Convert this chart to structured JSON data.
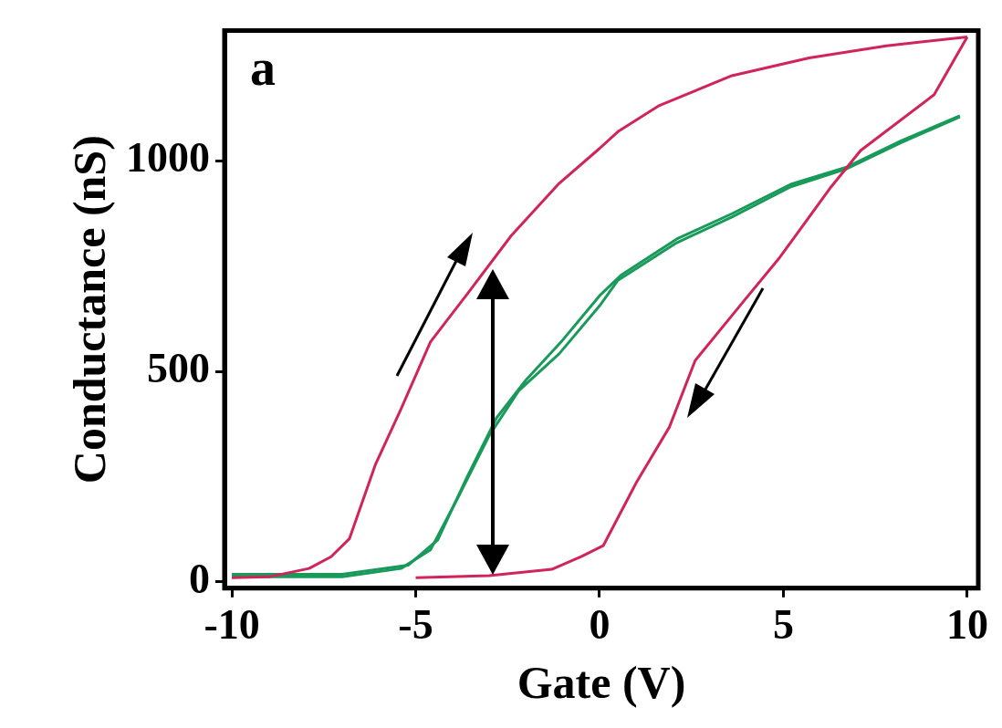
{
  "chart_data": {
    "type": "line",
    "xlabel": "Gate (V)",
    "ylabel": "Conductance (nS)",
    "xlim": [
      -10.2,
      10.3
    ],
    "ylim": [
      -15,
      1310
    ],
    "xticks": [
      -10,
      -5,
      0,
      5,
      10
    ],
    "yticks": [
      0,
      500,
      1000
    ],
    "marker": "none",
    "line_style": "solid",
    "annotations": [
      "a"
    ],
    "series": [
      {
        "color": "#d0245a",
        "x": [
          -10,
          -9,
          -7.9,
          -7.3,
          -6.8,
          -6.1,
          -5.4,
          -4.6,
          -3.6,
          -2.4,
          -1.1,
          0,
          0.5,
          1.6,
          3.6,
          5.7,
          7.8,
          10
        ],
        "values": [
          10,
          12,
          32,
          60,
          103,
          278,
          411,
          570,
          684,
          823,
          947,
          1030,
          1070,
          1131,
          1203,
          1245,
          1274,
          1295
        ]
      },
      {
        "color": "#d0245a",
        "x": [
          -5,
          -3,
          -1.3,
          -0.5,
          0.1,
          1,
          1.9,
          2.6,
          3.9,
          4.9,
          6.3,
          7.1,
          9.1,
          10
        ],
        "values": [
          10,
          15,
          30,
          60,
          86,
          236,
          368,
          526,
          665,
          771,
          939,
          1025,
          1158,
          1295
        ]
      },
      {
        "color": "#1a9a5a",
        "x": [
          -10,
          -7,
          -5.4,
          -4.6,
          -3.8,
          -3,
          -2.2,
          -1.1,
          0,
          0.5,
          2.1,
          3.6,
          5.2,
          6.7,
          8.2,
          9.8
        ],
        "values": [
          12,
          12,
          32,
          76,
          209,
          348,
          454,
          542,
          656,
          717,
          806,
          867,
          939,
          981,
          1044,
          1105
        ]
      },
      {
        "color": "#1a9a5a",
        "x": [
          -10,
          -7,
          -5.2,
          -4.4,
          -3.6,
          -2.8,
          -2,
          -1,
          0,
          0.6,
          2.1,
          3.6,
          5.2,
          6.7,
          8.2,
          9.8
        ],
        "values": [
          18,
          18,
          40,
          100,
          250,
          390,
          480,
          575,
          680,
          730,
          815,
          875,
          945,
          985,
          1048,
          1108
        ]
      }
    ]
  }
}
